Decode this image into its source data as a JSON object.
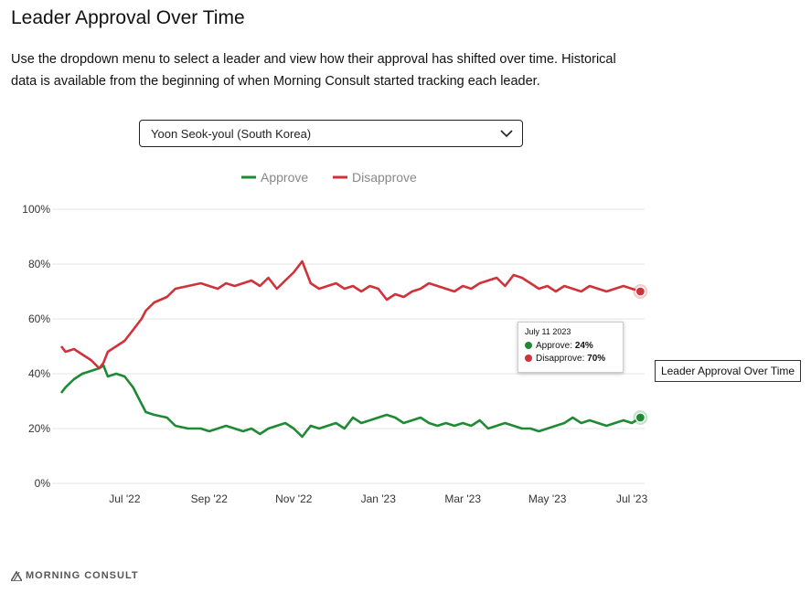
{
  "header": {
    "title": "Leader Approval Over Time",
    "description": "Use the dropdown menu to select a leader and view how their approval has shifted over time. Historical data is available from the beginning of when Morning Consult started tracking each leader."
  },
  "dropdown": {
    "selected": "Yoon Seok-youl (South Korea)"
  },
  "tooltip": {
    "date": "July 11 2023",
    "approve_label": "Approve:",
    "approve_value": "24%",
    "disapprove_label": "Disapprove:",
    "disapprove_value": "70%"
  },
  "side_label": "Leader Approval Over Time",
  "footer": {
    "brand": "MORNING CONSULT"
  },
  "colors": {
    "approve": "#1e8a34",
    "disapprove": "#d0323a",
    "grid": "#e6e6e6"
  },
  "chart_data": {
    "type": "line",
    "title": "Leader Approval Over Time",
    "legend": [
      "Approve",
      "Disapprove"
    ],
    "x_ticks": [
      "Jul '22",
      "Sep '22",
      "Nov '22",
      "Jan '23",
      "Mar '23",
      "May '23",
      "Jul '23"
    ],
    "x_tick_positions": [
      1.5,
      3.5,
      5.5,
      7.5,
      9.5,
      11.5,
      13.5
    ],
    "xlim": [
      0,
      13.8
    ],
    "y_ticks": [
      "0%",
      "20%",
      "40%",
      "60%",
      "80%",
      "100%"
    ],
    "ylim": [
      0,
      100
    ],
    "series": [
      {
        "name": "Approve",
        "x": [
          0,
          0.1,
          0.3,
          0.5,
          0.7,
          0.9,
          1.0,
          1.1,
          1.3,
          1.5,
          1.7,
          1.9,
          2.0,
          2.2,
          2.5,
          2.7,
          3.0,
          3.3,
          3.5,
          3.7,
          3.9,
          4.1,
          4.3,
          4.5,
          4.7,
          4.9,
          5.1,
          5.3,
          5.5,
          5.7,
          5.9,
          6.1,
          6.3,
          6.5,
          6.7,
          6.9,
          7.1,
          7.3,
          7.5,
          7.7,
          7.9,
          8.1,
          8.3,
          8.5,
          8.7,
          8.9,
          9.1,
          9.3,
          9.5,
          9.7,
          9.9,
          10.1,
          10.3,
          10.5,
          10.7,
          10.9,
          11.1,
          11.3,
          11.5,
          11.7,
          11.9,
          12.1,
          12.3,
          12.5,
          12.7,
          12.9,
          13.1,
          13.3,
          13.5,
          13.7
        ],
        "values": [
          33,
          35,
          38,
          40,
          41,
          42,
          43,
          39,
          40,
          39,
          35,
          29,
          26,
          25,
          24,
          21,
          20,
          20,
          19,
          20,
          21,
          20,
          19,
          20,
          18,
          20,
          21,
          22,
          20,
          17,
          21,
          20,
          21,
          22,
          20,
          24,
          22,
          23,
          24,
          25,
          24,
          22,
          23,
          24,
          22,
          21,
          22,
          21,
          22,
          21,
          23,
          20,
          21,
          22,
          21,
          20,
          20,
          19,
          20,
          21,
          22,
          24,
          22,
          23,
          22,
          21,
          22,
          23,
          22,
          24
        ]
      },
      {
        "name": "Disapprove",
        "x": [
          0,
          0.1,
          0.3,
          0.5,
          0.7,
          0.9,
          1.0,
          1.1,
          1.3,
          1.5,
          1.7,
          1.9,
          2.0,
          2.2,
          2.5,
          2.7,
          3.0,
          3.3,
          3.5,
          3.7,
          3.9,
          4.1,
          4.3,
          4.5,
          4.7,
          4.9,
          5.1,
          5.3,
          5.5,
          5.7,
          5.9,
          6.1,
          6.3,
          6.5,
          6.7,
          6.9,
          7.1,
          7.3,
          7.5,
          7.7,
          7.9,
          8.1,
          8.3,
          8.5,
          8.7,
          8.9,
          9.1,
          9.3,
          9.5,
          9.7,
          9.9,
          10.1,
          10.3,
          10.5,
          10.7,
          10.9,
          11.1,
          11.3,
          11.5,
          11.7,
          11.9,
          12.1,
          12.3,
          12.5,
          12.7,
          12.9,
          13.1,
          13.3,
          13.5,
          13.7
        ],
        "values": [
          50,
          48,
          49,
          47,
          45,
          42,
          44,
          48,
          50,
          52,
          56,
          60,
          63,
          66,
          68,
          71,
          72,
          73,
          72,
          71,
          73,
          72,
          73,
          74,
          72,
          75,
          71,
          74,
          77,
          81,
          73,
          71,
          72,
          73,
          71,
          72,
          70,
          72,
          71,
          67,
          69,
          68,
          70,
          71,
          73,
          72,
          71,
          70,
          72,
          71,
          73,
          74,
          75,
          72,
          76,
          75,
          73,
          71,
          72,
          70,
          72,
          71,
          70,
          72,
          71,
          70,
          71,
          72,
          71,
          70
        ]
      }
    ]
  }
}
